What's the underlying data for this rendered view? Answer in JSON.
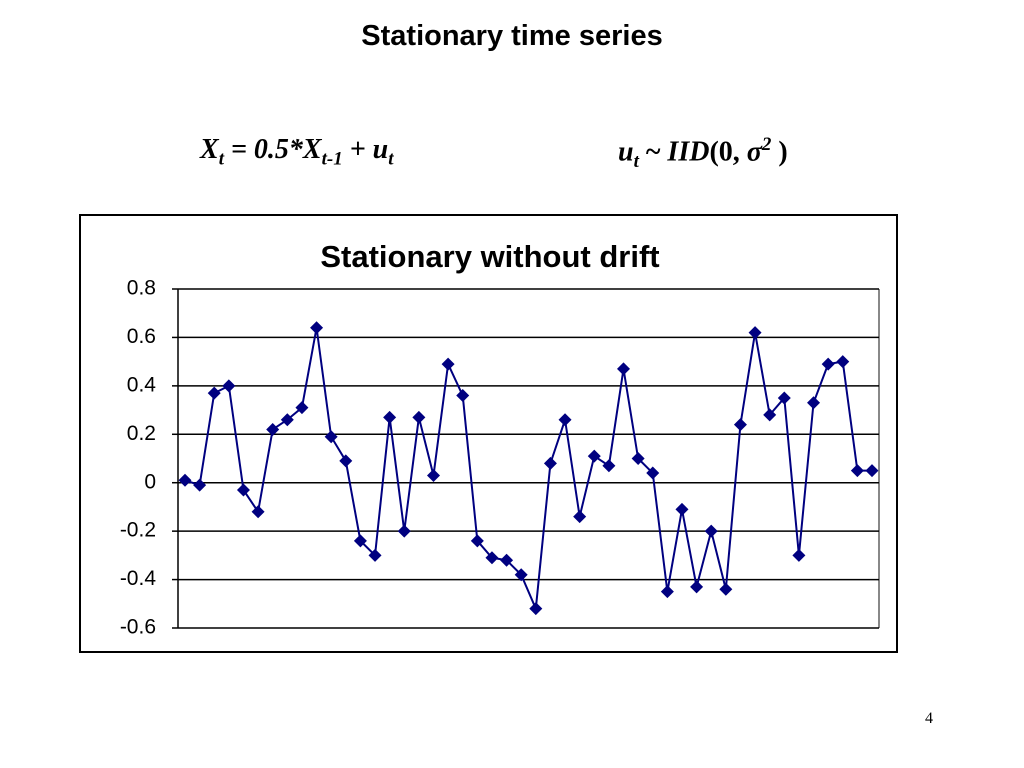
{
  "title": "Stationary time series",
  "equation_left": [
    "X",
    "t",
    " = 0.5*X",
    "t-1",
    " + u",
    "t"
  ],
  "equation_right": [
    "u",
    "t",
    " ~ ",
    "IID",
    "(0, ",
    "σ",
    "2",
    " )"
  ],
  "chart_data": {
    "type": "line",
    "title": "Stationary without drift",
    "color": "#000080",
    "values": [
      0.01,
      -0.01,
      0.37,
      0.4,
      -0.03,
      -0.12,
      0.22,
      0.26,
      0.31,
      0.64,
      0.19,
      0.09,
      -0.24,
      -0.3,
      0.27,
      -0.2,
      0.27,
      0.03,
      0.49,
      0.36,
      -0.24,
      -0.31,
      -0.32,
      -0.38,
      -0.52,
      0.08,
      0.26,
      -0.14,
      0.11,
      0.07,
      0.47,
      0.1,
      0.04,
      -0.45,
      -0.11,
      -0.43,
      -0.2,
      -0.44,
      0.24,
      0.62,
      0.28,
      0.35,
      -0.3,
      0.33,
      0.49,
      0.5,
      0.05,
      0.05
    ],
    "ylim": [
      -0.6,
      0.8
    ],
    "yticks": [
      -0.6,
      -0.4,
      -0.2,
      0,
      0.2,
      0.4,
      0.6,
      0.8
    ],
    "grid": true
  },
  "page_number": "4"
}
